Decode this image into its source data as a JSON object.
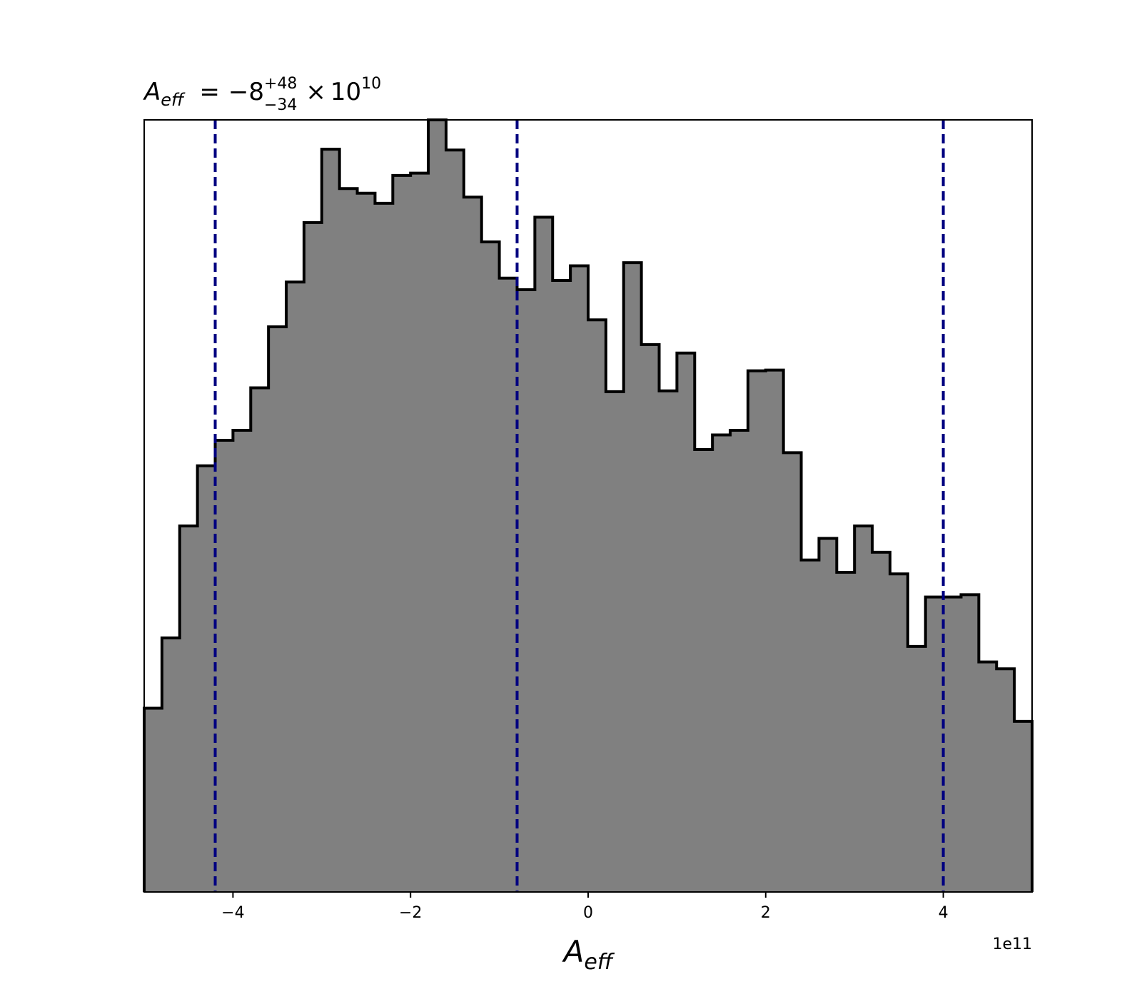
{
  "chart_data": {
    "type": "histogram",
    "title": {
      "symbol": "A",
      "symbol_sub": "eff",
      "equals": "=",
      "value": "−8",
      "upper": "+48",
      "lower": "−34",
      "times": "×",
      "base": "10",
      "exponent": "10"
    },
    "xlabel": {
      "symbol": "A",
      "sub": "eff"
    },
    "x_offset_text": "1e11",
    "xlim": [
      -5.0,
      5.0
    ],
    "ylim": [
      0,
      1.0
    ],
    "bin_edges": [
      -5.0,
      -4.8,
      -4.6,
      -4.4,
      -4.2,
      -4.0,
      -3.8,
      -3.6,
      -3.4,
      -3.2,
      -3.0,
      -2.8,
      -2.6,
      -2.4,
      -2.2,
      -2.0,
      -1.8,
      -1.6,
      -1.4,
      -1.2,
      -1.0,
      -0.8,
      -0.6,
      -0.4,
      -0.2,
      0.0,
      0.2,
      0.4,
      0.6,
      0.8,
      1.0,
      1.2,
      1.4,
      1.6,
      1.8,
      2.0,
      2.2,
      2.4,
      2.6,
      2.8,
      3.0,
      3.2,
      3.4,
      3.6,
      3.8,
      4.0,
      4.2,
      4.4,
      4.6,
      4.8,
      5.0
    ],
    "counts": [
      0.238,
      0.329,
      0.474,
      0.552,
      0.585,
      0.598,
      0.653,
      0.732,
      0.79,
      0.867,
      0.962,
      0.911,
      0.905,
      0.892,
      0.928,
      0.931,
      1.0,
      0.961,
      0.9,
      0.842,
      0.795,
      0.78,
      0.874,
      0.792,
      0.811,
      0.741,
      0.648,
      0.815,
      0.709,
      0.649,
      0.698,
      0.573,
      0.592,
      0.598,
      0.675,
      0.676,
      0.569,
      0.43,
      0.458,
      0.414,
      0.474,
      0.44,
      0.412,
      0.318,
      0.382,
      0.382,
      0.385,
      0.298,
      0.289,
      0.221
    ],
    "fill_color": "#808080",
    "edge_color": "#000000",
    "vlines": {
      "values": [
        -4.2,
        -0.8,
        4.0
      ],
      "color": "#000080",
      "style": "dashed"
    },
    "xticks": [
      {
        "value": -4,
        "label": "−4"
      },
      {
        "value": -2,
        "label": "−2"
      },
      {
        "value": 0,
        "label": "0"
      },
      {
        "value": 2,
        "label": "2"
      },
      {
        "value": 4,
        "label": "4"
      }
    ],
    "yticks_visible": false,
    "grid": false
  }
}
